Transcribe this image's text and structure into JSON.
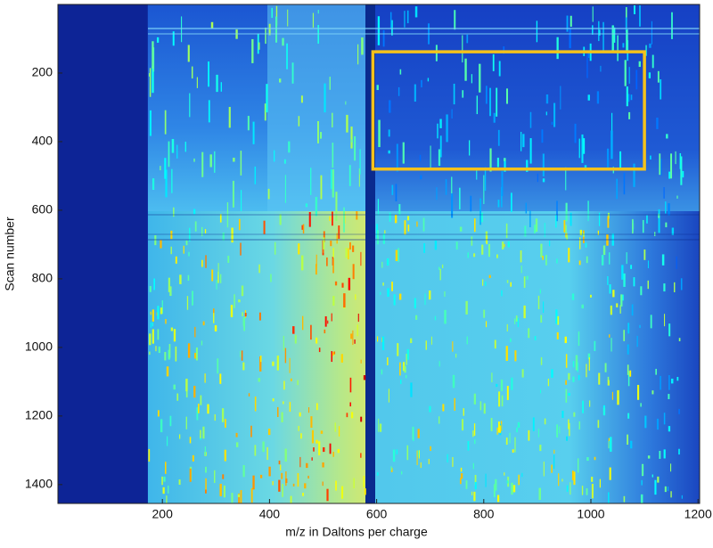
{
  "chart_data": {
    "type": "heatmap",
    "xlabel": "m/z in Daltons per charge",
    "ylabel": "Scan number",
    "xlim": [
      5,
      1203
    ],
    "ylim": [
      0,
      1455
    ],
    "y_inverted": true,
    "xticks": [
      200,
      400,
      600,
      800,
      1000,
      1200
    ],
    "yticks": [
      200,
      400,
      600,
      800,
      1000,
      1200,
      1400
    ],
    "highlight_box": {
      "x": [
        593,
        1100
      ],
      "y": [
        138,
        480
      ],
      "color": "#f5c21b"
    }
  }
}
